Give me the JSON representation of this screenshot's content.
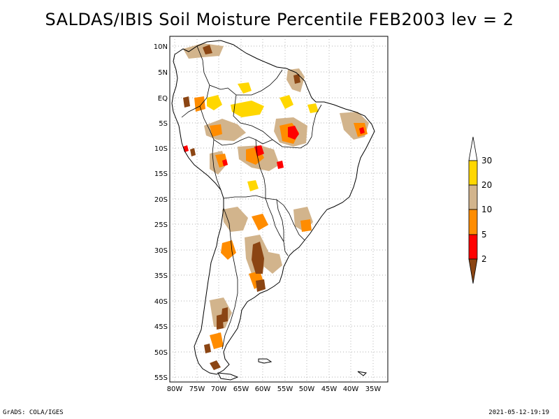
{
  "title": "SALDAS/IBIS Soil Moisture Percentile FEB2003 lev = 2",
  "footer": {
    "left": "GrADS: COLA/IGES",
    "right": "2021-05-12-19:19"
  },
  "lat_labels": [
    "10N",
    "5N",
    "EQ",
    "5S",
    "10S",
    "15S",
    "20S",
    "25S",
    "30S",
    "35S",
    "40S",
    "45S",
    "50S",
    "55S"
  ],
  "lon_labels": [
    "80W",
    "75W",
    "70W",
    "65W",
    "60W",
    "55W",
    "50W",
    "45W",
    "40W",
    "35W"
  ],
  "colorbar": {
    "labels": [
      "30",
      "20",
      "10",
      "5",
      "2"
    ],
    "colors": {
      "top_arrow": "#ffffff",
      "band_30_20": "#ffd700",
      "band_20_10": "#d2b48c",
      "band_10_5": "#ff8c00",
      "band_5_2": "#ff0000",
      "bottom_arrow": "#8b4513"
    }
  },
  "colors": {
    "grid": "#999999",
    "coast": "#000000",
    "lt2": "#8b4513",
    "p2_5": "#ff0000",
    "p5_10": "#ff8c00",
    "p10_20": "#d2b48c",
    "p20_30": "#ffd700"
  }
}
